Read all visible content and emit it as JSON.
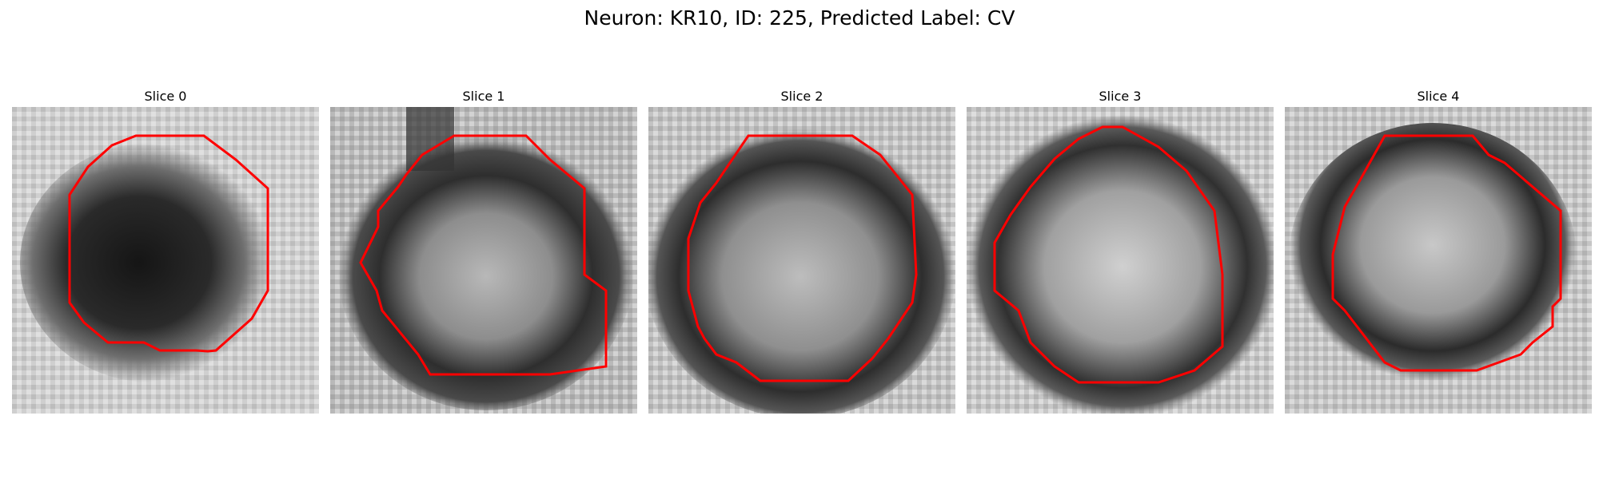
{
  "figure": {
    "title": "Neuron: KR10, ID: 225, Predicted Label: CV",
    "contour_color": "#ff0000"
  },
  "slices": [
    {
      "label": "Slice 0"
    },
    {
      "label": "Slice 1"
    },
    {
      "label": "Slice 2"
    },
    {
      "label": "Slice 3"
    },
    {
      "label": "Slice 4"
    }
  ]
}
